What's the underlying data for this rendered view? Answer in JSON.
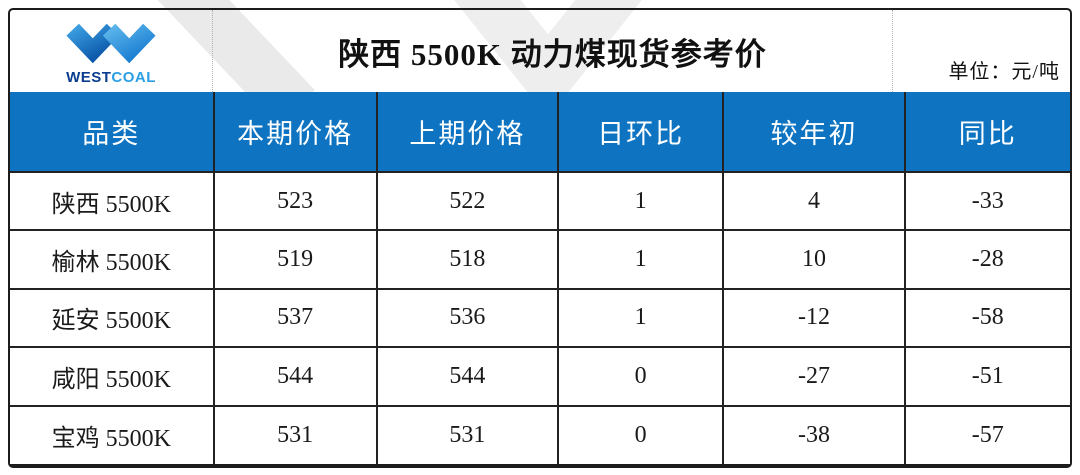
{
  "brand": {
    "logo_icon": "westcoal-w-logo",
    "west": "WEST",
    "coal": "COAL"
  },
  "header": {
    "title": "陕西 5500K 动力煤现货参考价",
    "unit_label": "单位：元/吨"
  },
  "table": {
    "columns": [
      "品类",
      "本期价格",
      "上期价格",
      "日环比",
      "较年初",
      "同比"
    ],
    "rows": [
      [
        "陕西 5500K",
        "523",
        "522",
        "1",
        "4",
        "-33"
      ],
      [
        "榆林 5500K",
        "519",
        "518",
        "1",
        "10",
        "-28"
      ],
      [
        "延安 5500K",
        "537",
        "536",
        "1",
        "-12",
        "-58"
      ],
      [
        "咸阳 5500K",
        "544",
        "544",
        "0",
        "-27",
        "-51"
      ],
      [
        "宝鸡 5500K",
        "531",
        "531",
        "0",
        "-38",
        "-57"
      ]
    ]
  },
  "chart_data": {
    "type": "table",
    "title": "陕西 5500K 动力煤现货参考价",
    "unit": "元/吨",
    "columns": [
      "品类",
      "本期价格",
      "上期价格",
      "日环比",
      "较年初",
      "同比"
    ],
    "rows": [
      {
        "品类": "陕西 5500K",
        "本期价格": 523,
        "上期价格": 522,
        "日环比": 1,
        "较年初": 4,
        "同比": -33
      },
      {
        "品类": "榆林 5500K",
        "本期价格": 519,
        "上期价格": 518,
        "日环比": 1,
        "较年初": 10,
        "同比": -28
      },
      {
        "品类": "延安 5500K",
        "本期价格": 537,
        "上期价格": 536,
        "日环比": 1,
        "较年初": -12,
        "同比": -58
      },
      {
        "品类": "咸阳 5500K",
        "本期价格": 544,
        "上期价格": 544,
        "日环比": 0,
        "较年初": -27,
        "同比": -51
      },
      {
        "品类": "宝鸡 5500K",
        "本期价格": 531,
        "上期价格": 531,
        "日环比": 0,
        "较年初": -38,
        "同比": -57
      }
    ]
  },
  "colors": {
    "header_bg": "#0E74C2",
    "header_text": "#FFFFFF",
    "border": "#1C1C1C",
    "logo_west": "#0B3D8F",
    "logo_coal": "#2B9FE6",
    "watermark": "#D9D9D9"
  }
}
